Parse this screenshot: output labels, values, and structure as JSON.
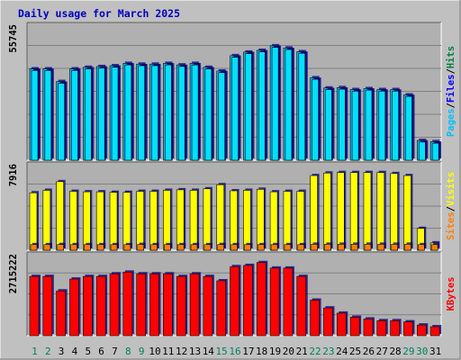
{
  "title": "Daily usage for March 2025",
  "colors": {
    "background": "#c0c0c0",
    "plot": "#b0b0b0",
    "title": "#0000c0",
    "grid": "#808080",
    "hits": "#00c0ff",
    "hits_shadow": "#0000a0",
    "files": "#00a0ff",
    "pages": "#00e0ff",
    "visits": "#ffff00",
    "sites": "#ff8000",
    "kbytes": "#ff0000",
    "label_hits": "#008040",
    "label_files": "#0000ff",
    "label_pages": "#00c0ff",
    "label_visits": "#ffff00",
    "label_sites": "#ff8000",
    "label_kbytes": "#ff0000",
    "weekday": "#000000",
    "weekend": "#00805c"
  },
  "chart_data": [
    {
      "type": "bar",
      "panel": "hits-files-pages",
      "ymax_label": "55745",
      "ylim": [
        0,
        55745
      ],
      "legend": [
        "Pages",
        "/",
        "Files",
        "/",
        "Hits"
      ],
      "categories": [
        "1",
        "2",
        "3",
        "4",
        "5",
        "6",
        "7",
        "8",
        "9",
        "10",
        "11",
        "12",
        "13",
        "14",
        "15",
        "16",
        "17",
        "18",
        "19",
        "20",
        "21",
        "22",
        "23",
        "24",
        "25",
        "26",
        "27",
        "28",
        "29",
        "30",
        "31"
      ],
      "weekend": [
        "1",
        "2",
        "8",
        "9",
        "15",
        "16",
        "22",
        "23",
        "29",
        "30"
      ],
      "series": [
        {
          "name": "Hits",
          "values": [
            46300,
            46300,
            39900,
            46300,
            47100,
            47500,
            47900,
            49100,
            48700,
            48700,
            49100,
            48300,
            49100,
            47100,
            45200,
            53000,
            54800,
            55700,
            58000,
            56900,
            55000,
            41800,
            36600,
            36800,
            35800,
            36300,
            35800,
            35800,
            33100,
            10000,
            9400
          ]
        },
        {
          "name": "Files",
          "values": [
            45500,
            45500,
            39000,
            45500,
            46300,
            46700,
            47100,
            48300,
            47900,
            47900,
            48300,
            47500,
            48300,
            46300,
            44400,
            52200,
            54000,
            54900,
            57200,
            56100,
            54200,
            41000,
            35800,
            36000,
            35000,
            35500,
            35000,
            35000,
            32300,
            9200,
            8600
          ]
        },
        {
          "name": "Pages",
          "values": [
            45500,
            45500,
            39000,
            45500,
            46300,
            46700,
            47100,
            48300,
            47900,
            47900,
            48300,
            47500,
            48300,
            46300,
            44400,
            52200,
            54000,
            54900,
            57200,
            56100,
            54200,
            41000,
            35800,
            36000,
            35000,
            35500,
            35000,
            35000,
            32300,
            9200,
            8600
          ]
        }
      ]
    },
    {
      "type": "bar",
      "panel": "visits-sites",
      "ymax_label": "7916",
      "ylim": [
        0,
        7916
      ],
      "legend": [
        "Sites",
        "/",
        "Visits"
      ],
      "categories": [
        "1",
        "2",
        "3",
        "4",
        "5",
        "6",
        "7",
        "8",
        "9",
        "10",
        "11",
        "12",
        "13",
        "14",
        "15",
        "16",
        "17",
        "18",
        "19",
        "20",
        "21",
        "22",
        "23",
        "24",
        "25",
        "26",
        "27",
        "28",
        "29",
        "30",
        "31"
      ],
      "series": [
        {
          "name": "Visits",
          "values": [
            5650,
            5900,
            6750,
            5800,
            5750,
            5750,
            5700,
            5700,
            5800,
            5800,
            5900,
            5950,
            5900,
            6050,
            6450,
            5850,
            5900,
            6000,
            5750,
            5800,
            5800,
            7350,
            7600,
            7650,
            7650,
            7650,
            7650,
            7550,
            7350,
            2150,
            720
          ]
        },
        {
          "name": "Sites",
          "values": [
            550,
            550,
            560,
            550,
            550,
            550,
            550,
            550,
            570,
            550,
            550,
            550,
            550,
            550,
            560,
            550,
            550,
            550,
            550,
            550,
            550,
            590,
            590,
            590,
            590,
            590,
            590,
            590,
            590,
            550,
            550
          ]
        }
      ]
    },
    {
      "type": "bar",
      "panel": "kbytes",
      "ymax_label": "2715222",
      "ylim": [
        0,
        2715222
      ],
      "legend": [
        "KBytes"
      ],
      "categories": [
        "1",
        "2",
        "3",
        "4",
        "5",
        "6",
        "7",
        "8",
        "9",
        "10",
        "11",
        "12",
        "13",
        "14",
        "15",
        "16",
        "17",
        "18",
        "19",
        "20",
        "21",
        "22",
        "23",
        "24",
        "25",
        "26",
        "27",
        "28",
        "29",
        "30",
        "31"
      ],
      "series": [
        {
          "name": "KBytes",
          "values": [
            2050000,
            2050000,
            1550000,
            1960000,
            2050000,
            2050000,
            2140000,
            2200000,
            2140000,
            2140000,
            2140000,
            2050000,
            2140000,
            2050000,
            1900000,
            2390000,
            2430000,
            2530000,
            2340000,
            2340000,
            2050000,
            1230000,
            960000,
            780000,
            640000,
            580000,
            520000,
            520000,
            480000,
            370000,
            310000
          ]
        }
      ]
    }
  ]
}
